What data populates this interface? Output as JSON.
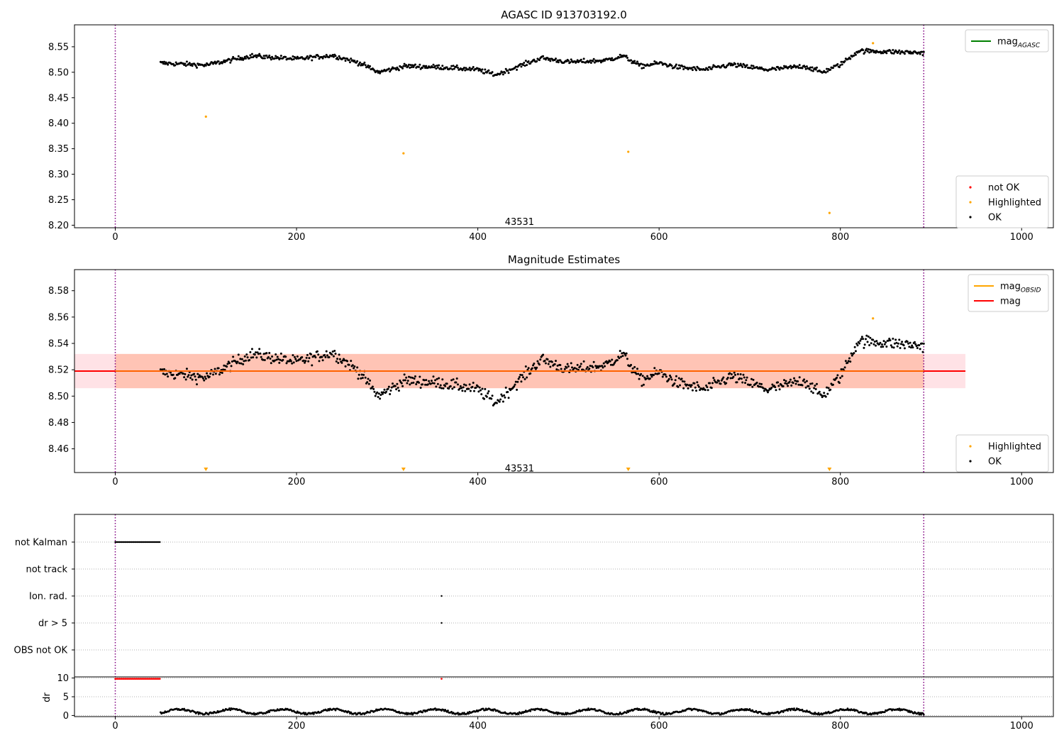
{
  "chart_data": [
    {
      "type": "scatter",
      "title": "AGASC ID 913703192.0",
      "xlim": [
        -45,
        1035
      ],
      "ylim": [
        8.195,
        8.593
      ],
      "xticks": [
        0,
        200,
        400,
        600,
        800,
        1000
      ],
      "yticks": [
        8.2,
        8.25,
        8.3,
        8.35,
        8.4,
        8.45,
        8.5,
        8.55
      ],
      "vlines": [
        0,
        892
      ],
      "annotation": {
        "text": "43531",
        "x": 446,
        "y": 8.205
      },
      "legend_top": {
        "placement": "top-right",
        "entries": [
          {
            "label": "mag",
            "sub": "AGASC",
            "color": "#008000"
          }
        ]
      },
      "legend_bottom": {
        "placement": "lower-right",
        "entries": [
          {
            "label": "not OK",
            "color": "#ff0000"
          },
          {
            "label": "Highlighted",
            "color": "#ffa500"
          },
          {
            "label": "OK",
            "color": "#000000"
          }
        ]
      },
      "ok_range": [
        50,
        892
      ],
      "highlighted": [
        [
          100,
          8.413
        ],
        [
          318,
          8.341
        ],
        [
          566,
          8.344
        ],
        [
          788,
          8.224
        ],
        [
          836,
          8.557
        ]
      ]
    },
    {
      "type": "scatter",
      "title": "Magnitude Estimates",
      "xlim": [
        -45,
        1035
      ],
      "ylim": [
        8.442,
        8.596
      ],
      "xticks": [
        0,
        200,
        400,
        600,
        800,
        1000
      ],
      "yticks": [
        8.46,
        8.48,
        8.5,
        8.52,
        8.54,
        8.56,
        8.58
      ],
      "vlines": [
        0,
        892
      ],
      "mag_line": 8.519,
      "band_outer": [
        8.506,
        8.532
      ],
      "band_outer_x": [
        -45,
        938
      ],
      "band_inner_x": [
        0,
        892
      ],
      "annotation": {
        "text": "43531",
        "x": 446,
        "y": 8.445
      },
      "legend_top": {
        "placement": "top-right",
        "entries": [
          {
            "label": "mag",
            "sub": "OBSID",
            "color": "#ffa500"
          },
          {
            "label": "mag",
            "sub": "",
            "color": "#ff0000"
          }
        ]
      },
      "legend_bottom": {
        "placement": "lower-right",
        "entries": [
          {
            "label": "Highlighted",
            "color": "#ffa500"
          },
          {
            "label": "OK",
            "color": "#000000"
          }
        ]
      },
      "highlighted": [
        [
          836,
          8.559
        ]
      ],
      "off_scale_markers": [
        100,
        318,
        566,
        788
      ]
    },
    {
      "type": "scatter",
      "title": "",
      "xlim": [
        -45,
        1035
      ],
      "flag_labels": [
        "not Kalman",
        "not track",
        "Ion. rad.",
        "dr > 5",
        "OBS not OK"
      ],
      "flag_points": {
        "not Kalman": [
          [
            0,
            50
          ]
        ],
        "not track": [],
        "Ion. rad.": [
          [
            360,
            360
          ]
        ],
        "dr > 5": [
          [
            360,
            360
          ]
        ],
        "OBS not OK": []
      },
      "vlines": [
        0,
        892
      ]
    },
    {
      "type": "scatter",
      "title": "",
      "xlim": [
        -45,
        1035
      ],
      "ylim": [
        -0.3,
        10.3
      ],
      "xticks": [
        0,
        200,
        400,
        600,
        800,
        1000
      ],
      "yticks": [
        0,
        5,
        10
      ],
      "ylabel": "dr",
      "vlines": [
        0,
        892
      ],
      "red_points": [
        [
          0,
          50,
          9.8
        ],
        [
          360,
          360,
          9.8
        ]
      ],
      "ok_range": [
        50,
        892
      ]
    }
  ],
  "colors": {
    "ok": "#000000",
    "highlighted": "#ffa500",
    "not_ok": "#ff0000",
    "vline": "#800080",
    "band": "#ffb6c1",
    "band_inner": "#ffa07a",
    "mag": "#ff0000",
    "grid": "#b0b0b0"
  }
}
